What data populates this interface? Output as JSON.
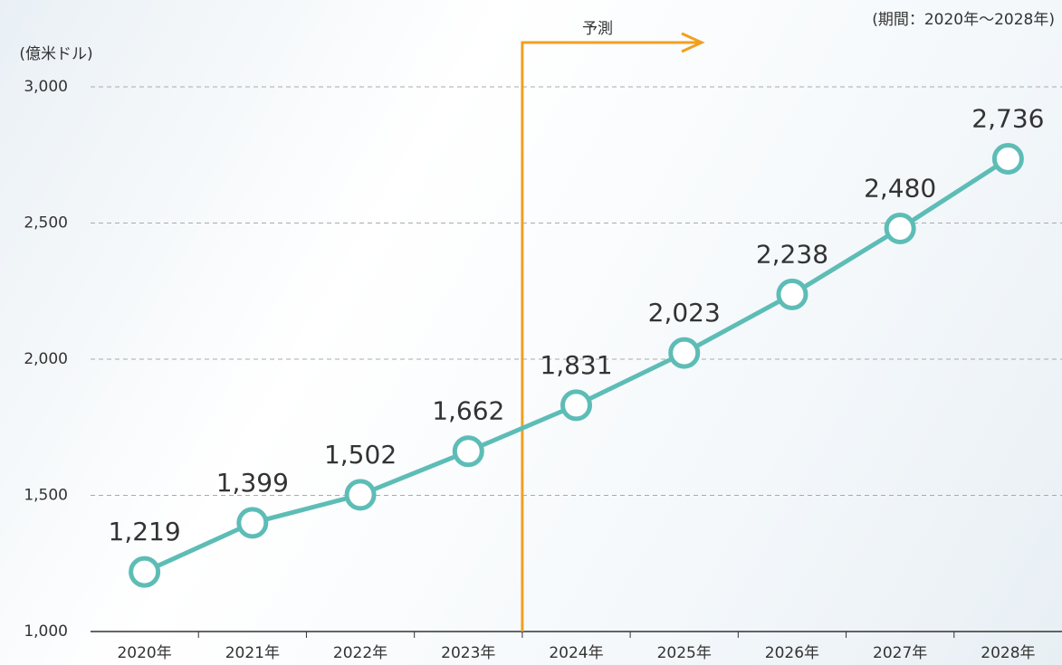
{
  "chart_data": {
    "type": "line",
    "unit_label": "(億米ドル)",
    "period_note": "(期間：2020年～2028年)",
    "forecast_label": "予測",
    "categories": [
      "2020年",
      "2021年",
      "2022年",
      "2023年",
      "2024年",
      "2025年",
      "2026年",
      "2027年",
      "2028年"
    ],
    "values": [
      1219,
      1399,
      1502,
      1662,
      1831,
      2023,
      2238,
      2480,
      2736
    ],
    "value_labels": [
      "1,219",
      "1,399",
      "1,502",
      "1,662",
      "1,831",
      "2,023",
      "2,238",
      "2,480",
      "2,736"
    ],
    "color": "#5dbdb6",
    "forecast_color": "#f0a020",
    "ylim": [
      1000,
      3000
    ],
    "yticks": [
      {
        "value": 1000,
        "label": "1,000"
      },
      {
        "value": 1500,
        "label": "1,500"
      },
      {
        "value": 2000,
        "label": "2,000"
      },
      {
        "value": 2500,
        "label": "2,500"
      },
      {
        "value": 3000,
        "label": "3,000"
      }
    ],
    "grid": true
  }
}
